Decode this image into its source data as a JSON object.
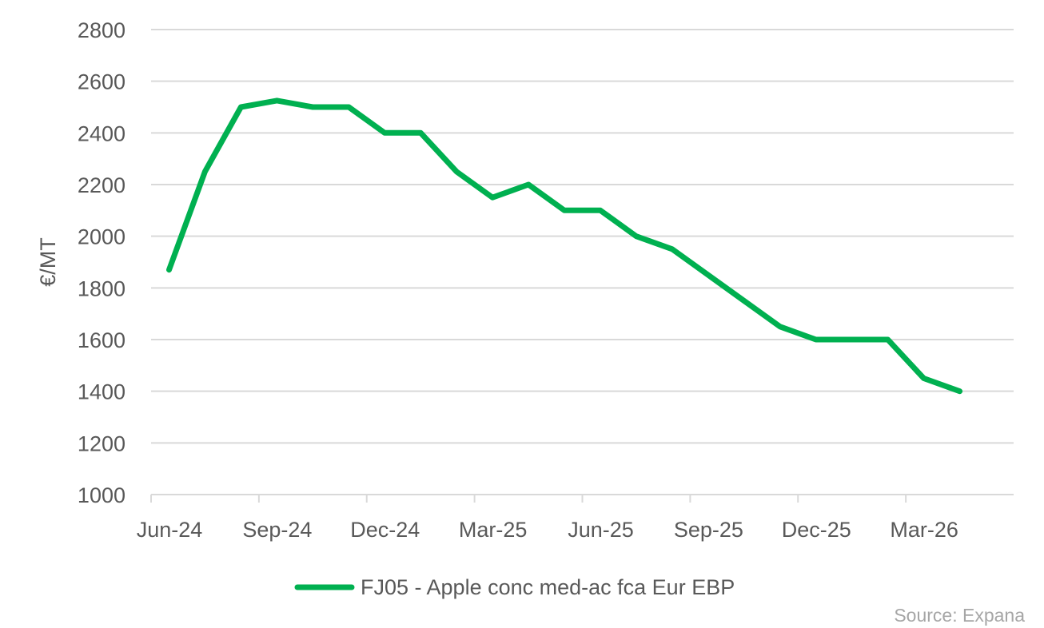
{
  "chart_data": {
    "type": "line",
    "title": "",
    "xlabel": "",
    "ylabel": "€/MT",
    "ylim": [
      1000,
      2800
    ],
    "yticks": [
      1000,
      1200,
      1400,
      1600,
      1800,
      2000,
      2200,
      2400,
      2600,
      2800
    ],
    "x_start": "2024-06",
    "x_end": "2026-05",
    "xticks": [
      {
        "month": "2024-06",
        "label": "Jun-24"
      },
      {
        "month": "2024-09",
        "label": "Sep-24"
      },
      {
        "month": "2024-12",
        "label": "Dec-24"
      },
      {
        "month": "2025-03",
        "label": "Mar-25"
      },
      {
        "month": "2025-06",
        "label": "Jun-25"
      },
      {
        "month": "2025-09",
        "label": "Sep-25"
      },
      {
        "month": "2025-12",
        "label": "Dec-25"
      },
      {
        "month": "2026-03",
        "label": "Mar-26"
      }
    ],
    "grid": true,
    "legend": "bottom",
    "series": [
      {
        "name": "FJ05 - Apple conc med-ac fca Eur EBP",
        "color": "#00b050",
        "x": [
          "2024-06",
          "2024-07",
          "2024-08",
          "2024-09",
          "2024-10",
          "2024-11",
          "2024-12",
          "2025-01",
          "2025-02",
          "2025-03",
          "2025-04",
          "2025-05",
          "2025-06",
          "2025-07",
          "2025-08",
          "2025-09",
          "2025-10",
          "2025-11",
          "2025-12",
          "2026-01",
          "2026-02",
          "2026-03",
          "2026-04"
        ],
        "y": [
          1870,
          2250,
          2500,
          2525,
          2500,
          2500,
          2400,
          2400,
          2250,
          2150,
          2200,
          2100,
          2100,
          2000,
          1950,
          1850,
          1750,
          1650,
          1600,
          1600,
          1600,
          1450,
          1400
        ]
      }
    ],
    "source": "Source: Expana"
  }
}
